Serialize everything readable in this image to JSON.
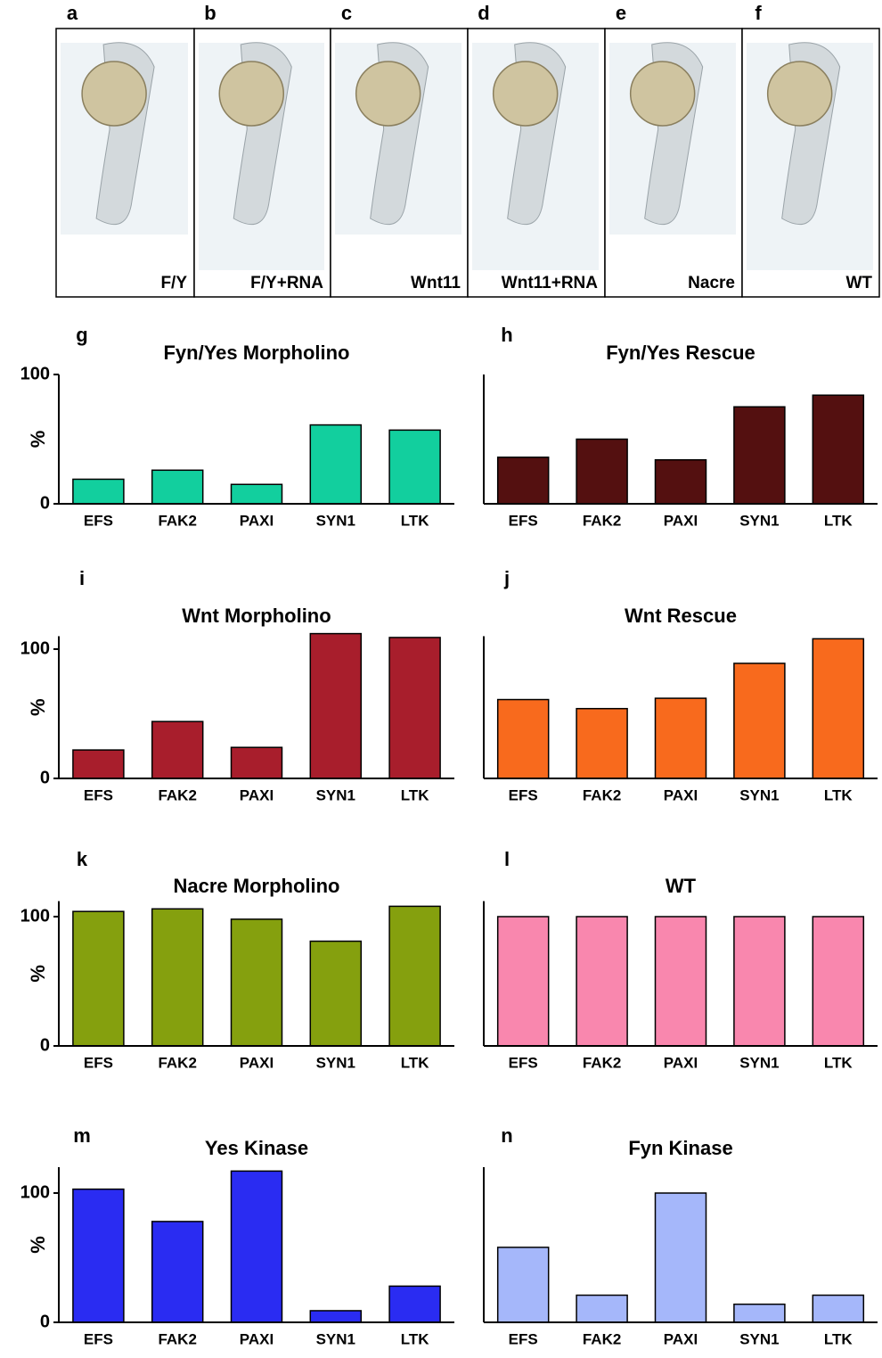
{
  "panels": [
    {
      "letter": "a",
      "label": "F/Y"
    },
    {
      "letter": "b",
      "label": "F/Y+RNA"
    },
    {
      "letter": "c",
      "label": "Wnt11"
    },
    {
      "letter": "d",
      "label": "Wnt11+RNA"
    },
    {
      "letter": "e",
      "label": "Nacre"
    },
    {
      "letter": "f",
      "label": "WT"
    }
  ],
  "chart_data": [
    {
      "type": "bar",
      "panel": "g",
      "title": "Fyn/Yes Morpholino",
      "ylabel": "%",
      "categories": [
        "EFS",
        "FAK2",
        "PAXI",
        "SYN1",
        "LTK"
      ],
      "values": [
        19,
        26,
        15,
        61,
        57
      ],
      "color": "#12cf9e",
      "ylim": [
        0,
        100
      ],
      "yticks": [
        0,
        100
      ]
    },
    {
      "type": "bar",
      "panel": "h",
      "title": "Fyn/Yes Rescue",
      "categories": [
        "EFS",
        "FAK2",
        "PAXI",
        "SYN1",
        "LTK"
      ],
      "values": [
        36,
        50,
        34,
        75,
        84
      ],
      "color": "#541010",
      "ylim": [
        0,
        100
      ]
    },
    {
      "type": "bar",
      "panel": "i",
      "title": "Wnt Morpholino",
      "ylabel": "%",
      "categories": [
        "EFS",
        "FAK2",
        "PAXI",
        "SYN1",
        "LTK"
      ],
      "values": [
        22,
        44,
        24,
        112,
        109
      ],
      "color": "#a81e2c",
      "ylim": [
        0,
        110
      ],
      "yticks": [
        0,
        100
      ]
    },
    {
      "type": "bar",
      "panel": "j",
      "title": "Wnt Rescue",
      "categories": [
        "EFS",
        "FAK2",
        "PAXI",
        "SYN1",
        "LTK"
      ],
      "values": [
        61,
        54,
        62,
        89,
        108
      ],
      "color": "#f86a1d",
      "ylim": [
        0,
        110
      ]
    },
    {
      "type": "bar",
      "panel": "k",
      "title": "Nacre Morpholino",
      "ylabel": "%",
      "categories": [
        "EFS",
        "FAK2",
        "PAXI",
        "SYN1",
        "LTK"
      ],
      "values": [
        104,
        106,
        98,
        81,
        108
      ],
      "color": "#85a00e",
      "ylim": [
        0,
        112
      ],
      "yticks": [
        0,
        100
      ]
    },
    {
      "type": "bar",
      "panel": "l",
      "title": "WT",
      "categories": [
        "EFS",
        "FAK2",
        "PAXI",
        "SYN1",
        "LTK"
      ],
      "values": [
        100,
        100,
        100,
        100,
        100
      ],
      "color": "#f987ae",
      "ylim": [
        0,
        112
      ]
    },
    {
      "type": "bar",
      "panel": "m",
      "title": "Yes Kinase",
      "ylabel": "%",
      "categories": [
        "EFS",
        "FAK2",
        "PAXI",
        "SYN1",
        "LTK"
      ],
      "values": [
        103,
        78,
        117,
        9,
        28
      ],
      "color": "#2a2cf2",
      "ylim": [
        0,
        120
      ],
      "yticks": [
        0,
        100
      ]
    },
    {
      "type": "bar",
      "panel": "n",
      "title": "Fyn Kinase",
      "categories": [
        "EFS",
        "FAK2",
        "PAXI",
        "SYN1",
        "LTK"
      ],
      "values": [
        58,
        21,
        100,
        14,
        21
      ],
      "color": "#a5b7fa",
      "ylim": [
        0,
        120
      ]
    }
  ]
}
